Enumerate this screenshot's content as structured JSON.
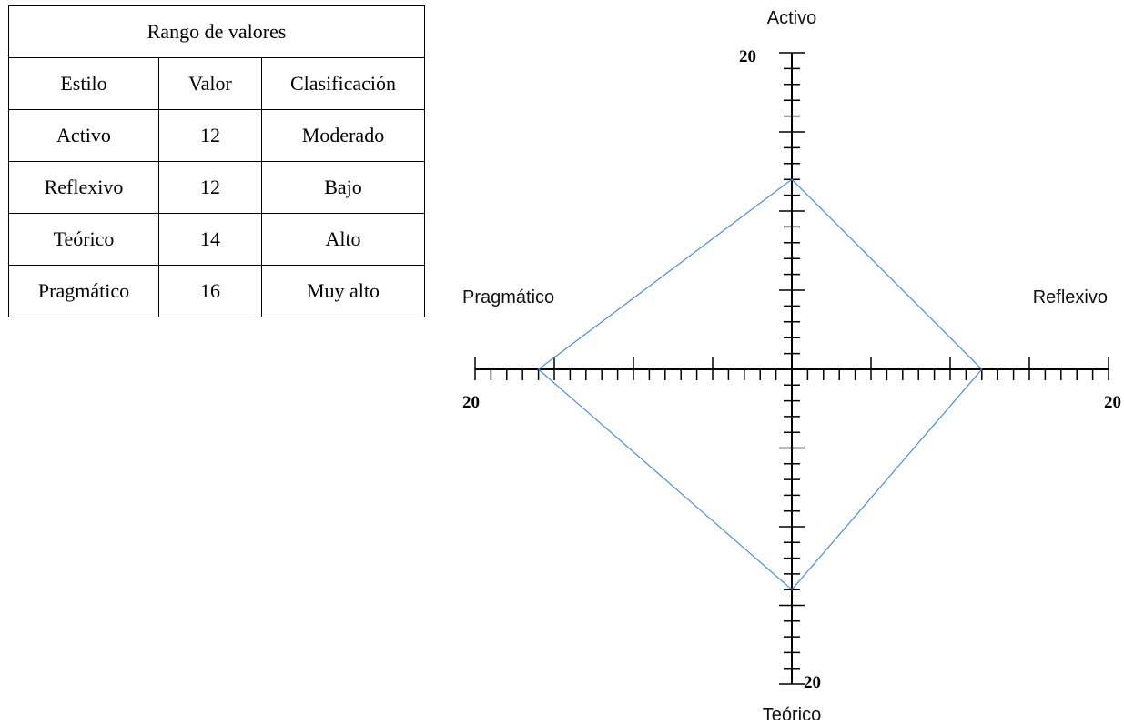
{
  "table": {
    "title": "Rango de valores",
    "headers": [
      "Estilo",
      "Valor",
      "Clasificación"
    ],
    "rows": [
      [
        "Activo",
        "12",
        "Moderado"
      ],
      [
        "Reflexivo",
        "12",
        "Bajo"
      ],
      [
        "Teórico",
        "14",
        "Alto"
      ],
      [
        "Pragmático",
        "16",
        "Muy alto"
      ]
    ]
  },
  "chart_data": {
    "type": "radar",
    "axes": [
      "Activo",
      "Reflexivo",
      "Teórico",
      "Pragmático"
    ],
    "axis_max": 20,
    "axis_tick_labels": {
      "Activo": "20",
      "Reflexivo": "20",
      "Teórico": "20",
      "Pragmático": "20"
    },
    "values": [
      12,
      12,
      14,
      16
    ],
    "line_color": "#4a8fd6",
    "axis_color": "#000000"
  }
}
